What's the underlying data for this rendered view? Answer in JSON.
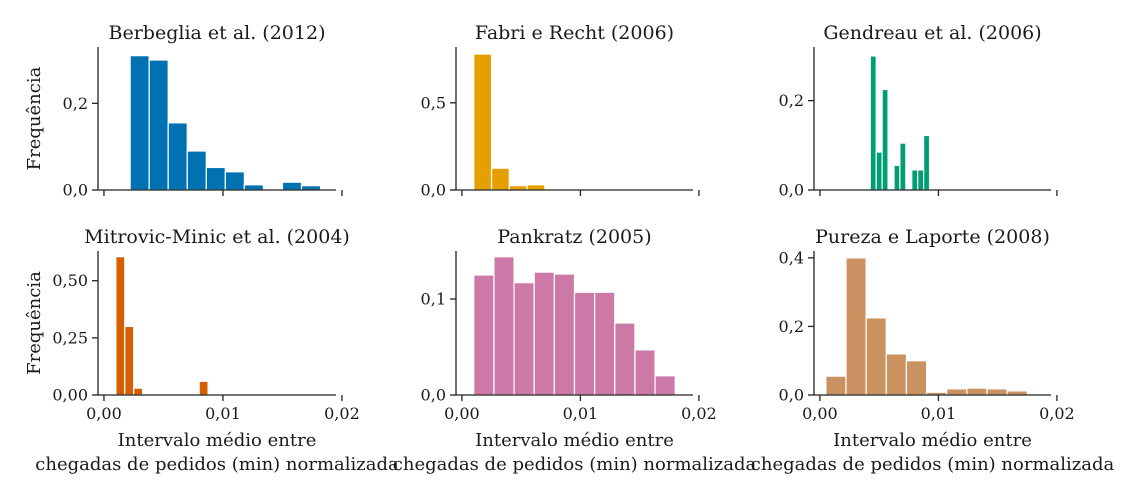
{
  "chart_data": [
    {
      "type": "bar",
      "title": "Berbeglia et al. (2012)",
      "color": "#0072b2",
      "ylabel": "Frequência",
      "xlabel_lines": [],
      "xlim": [
        -0.0005,
        0.0195
      ],
      "ylim": [
        0,
        0.33
      ],
      "yticks": [
        0.0,
        0.2
      ],
      "ytick_labels": [
        "0,0",
        "0,2"
      ],
      "xticks": [
        0.0,
        0.01,
        0.02
      ],
      "xtick_labels": [
        "",
        "",
        ""
      ],
      "bins": [
        {
          "x0": 0.0022,
          "x1": 0.0038,
          "value": 0.31
        },
        {
          "x0": 0.0038,
          "x1": 0.0054,
          "value": 0.3
        },
        {
          "x0": 0.0054,
          "x1": 0.007,
          "value": 0.155
        },
        {
          "x0": 0.007,
          "x1": 0.0086,
          "value": 0.09
        },
        {
          "x0": 0.0086,
          "x1": 0.0102,
          "value": 0.052
        },
        {
          "x0": 0.0102,
          "x1": 0.0118,
          "value": 0.042
        },
        {
          "x0": 0.0118,
          "x1": 0.0134,
          "value": 0.012
        },
        {
          "x0": 0.0134,
          "x1": 0.015,
          "value": 0.0
        },
        {
          "x0": 0.015,
          "x1": 0.0166,
          "value": 0.018
        },
        {
          "x0": 0.0166,
          "x1": 0.0182,
          "value": 0.01
        }
      ]
    },
    {
      "type": "bar",
      "title": "Fabri e Recht (2006)",
      "color": "#e69f00",
      "ylabel": "",
      "xlabel_lines": [],
      "xlim": [
        -0.0005,
        0.0195
      ],
      "ylim": [
        0,
        0.82
      ],
      "yticks": [
        0.0,
        0.5
      ],
      "ytick_labels": [
        "0,0",
        "0,5"
      ],
      "xticks": [
        0.0,
        0.01,
        0.02
      ],
      "xtick_labels": [
        "",
        "",
        ""
      ],
      "bins": [
        {
          "x0": 0.001,
          "x1": 0.0025,
          "value": 0.78
        },
        {
          "x0": 0.0025,
          "x1": 0.004,
          "value": 0.125
        },
        {
          "x0": 0.004,
          "x1": 0.0055,
          "value": 0.025
        },
        {
          "x0": 0.0055,
          "x1": 0.007,
          "value": 0.03
        }
      ]
    },
    {
      "type": "bar",
      "title": "Gendreau et al. (2006)",
      "color": "#009e73",
      "ylabel": "",
      "xlabel_lines": [],
      "xlim": [
        -0.0005,
        0.0195
      ],
      "ylim": [
        0,
        0.32
      ],
      "yticks": [
        0.0,
        0.2
      ],
      "ytick_labels": [
        "0,0",
        "0,2"
      ],
      "xticks": [
        0.0,
        0.01,
        0.02
      ],
      "xtick_labels": [
        "",
        "",
        ""
      ],
      "bins": [
        {
          "x0": 0.00425,
          "x1": 0.00475,
          "value": 0.3
        },
        {
          "x0": 0.00475,
          "x1": 0.00525,
          "value": 0.085
        },
        {
          "x0": 0.00525,
          "x1": 0.00575,
          "value": 0.225
        },
        {
          "x0": 0.00575,
          "x1": 0.00625,
          "value": 0.0
        },
        {
          "x0": 0.00625,
          "x1": 0.00675,
          "value": 0.055
        },
        {
          "x0": 0.00675,
          "x1": 0.00725,
          "value": 0.105
        },
        {
          "x0": 0.00725,
          "x1": 0.00775,
          "value": 0.0
        },
        {
          "x0": 0.00775,
          "x1": 0.00825,
          "value": 0.045
        },
        {
          "x0": 0.00825,
          "x1": 0.00875,
          "value": 0.045
        },
        {
          "x0": 0.00875,
          "x1": 0.00925,
          "value": 0.122
        }
      ]
    },
    {
      "type": "bar",
      "title": "Mitrovic-Minic et al. (2004)",
      "color": "#d55e00",
      "ylabel": "Frequência",
      "xlabel_lines": [
        "Intervalo médio entre",
        "chegadas de pedidos (min) normalizada"
      ],
      "xlim": [
        -0.0005,
        0.0195
      ],
      "ylim": [
        0,
        0.63
      ],
      "yticks": [
        0.0,
        0.25,
        0.5
      ],
      "ytick_labels": [
        "0,00",
        "0,25",
        "0,50"
      ],
      "xticks": [
        0.0,
        0.01,
        0.02
      ],
      "xtick_labels": [
        "0,00",
        "0,01",
        "0,02"
      ],
      "bins": [
        {
          "x0": 0.001,
          "x1": 0.00175,
          "value": 0.605
        },
        {
          "x0": 0.00175,
          "x1": 0.0025,
          "value": 0.3
        },
        {
          "x0": 0.0025,
          "x1": 0.00325,
          "value": 0.03
        },
        {
          "x0": 0.008,
          "x1": 0.00875,
          "value": 0.06
        }
      ]
    },
    {
      "type": "bar",
      "title": "Pankratz (2005)",
      "color": "#cc79a7",
      "ylabel": "",
      "xlabel_lines": [
        "Intervalo médio entre",
        "chegadas de pedidos (min) normalizada"
      ],
      "xlim": [
        -0.0005,
        0.0195
      ],
      "ylim": [
        0,
        0.15
      ],
      "yticks": [
        0.0,
        0.1
      ],
      "ytick_labels": [
        "0,0",
        "0,1"
      ],
      "xticks": [
        0.0,
        0.01,
        0.02
      ],
      "xtick_labels": [
        "0,00",
        "0,01",
        "0,02"
      ],
      "bins": [
        {
          "x0": 0.001,
          "x1": 0.0027,
          "value": 0.125
        },
        {
          "x0": 0.0027,
          "x1": 0.0044,
          "value": 0.144
        },
        {
          "x0": 0.0044,
          "x1": 0.0061,
          "value": 0.117
        },
        {
          "x0": 0.0061,
          "x1": 0.0078,
          "value": 0.128
        },
        {
          "x0": 0.0078,
          "x1": 0.0095,
          "value": 0.126
        },
        {
          "x0": 0.0095,
          "x1": 0.0112,
          "value": 0.107
        },
        {
          "x0": 0.0112,
          "x1": 0.0129,
          "value": 0.107
        },
        {
          "x0": 0.0129,
          "x1": 0.0146,
          "value": 0.075
        },
        {
          "x0": 0.0146,
          "x1": 0.0163,
          "value": 0.047
        },
        {
          "x0": 0.0163,
          "x1": 0.018,
          "value": 0.02
        }
      ]
    },
    {
      "type": "bar",
      "title": "Pureza e Laporte (2008)",
      "color": "#ca9161",
      "ylabel": "",
      "xlabel_lines": [
        "Intervalo médio entre",
        "chegadas de pedidos (min) normalizada"
      ],
      "xlim": [
        -0.0005,
        0.0195
      ],
      "ylim": [
        0,
        0.42
      ],
      "yticks": [
        0.0,
        0.2,
        0.4
      ],
      "ytick_labels": [
        "0,0",
        "0,2",
        "0,4"
      ],
      "xticks": [
        0.0,
        0.01,
        0.02
      ],
      "xtick_labels": [
        "0,00",
        "0,01",
        "0,02"
      ],
      "bins": [
        {
          "x0": 0.0005,
          "x1": 0.0022,
          "value": 0.055
        },
        {
          "x0": 0.0022,
          "x1": 0.0039,
          "value": 0.4
        },
        {
          "x0": 0.0039,
          "x1": 0.0056,
          "value": 0.225
        },
        {
          "x0": 0.0056,
          "x1": 0.0073,
          "value": 0.12
        },
        {
          "x0": 0.0073,
          "x1": 0.009,
          "value": 0.1
        },
        {
          "x0": 0.009,
          "x1": 0.0107,
          "value": 0.008
        },
        {
          "x0": 0.0107,
          "x1": 0.0124,
          "value": 0.018
        },
        {
          "x0": 0.0124,
          "x1": 0.0141,
          "value": 0.02
        },
        {
          "x0": 0.0141,
          "x1": 0.0158,
          "value": 0.018
        },
        {
          "x0": 0.0158,
          "x1": 0.0175,
          "value": 0.012
        }
      ]
    }
  ]
}
